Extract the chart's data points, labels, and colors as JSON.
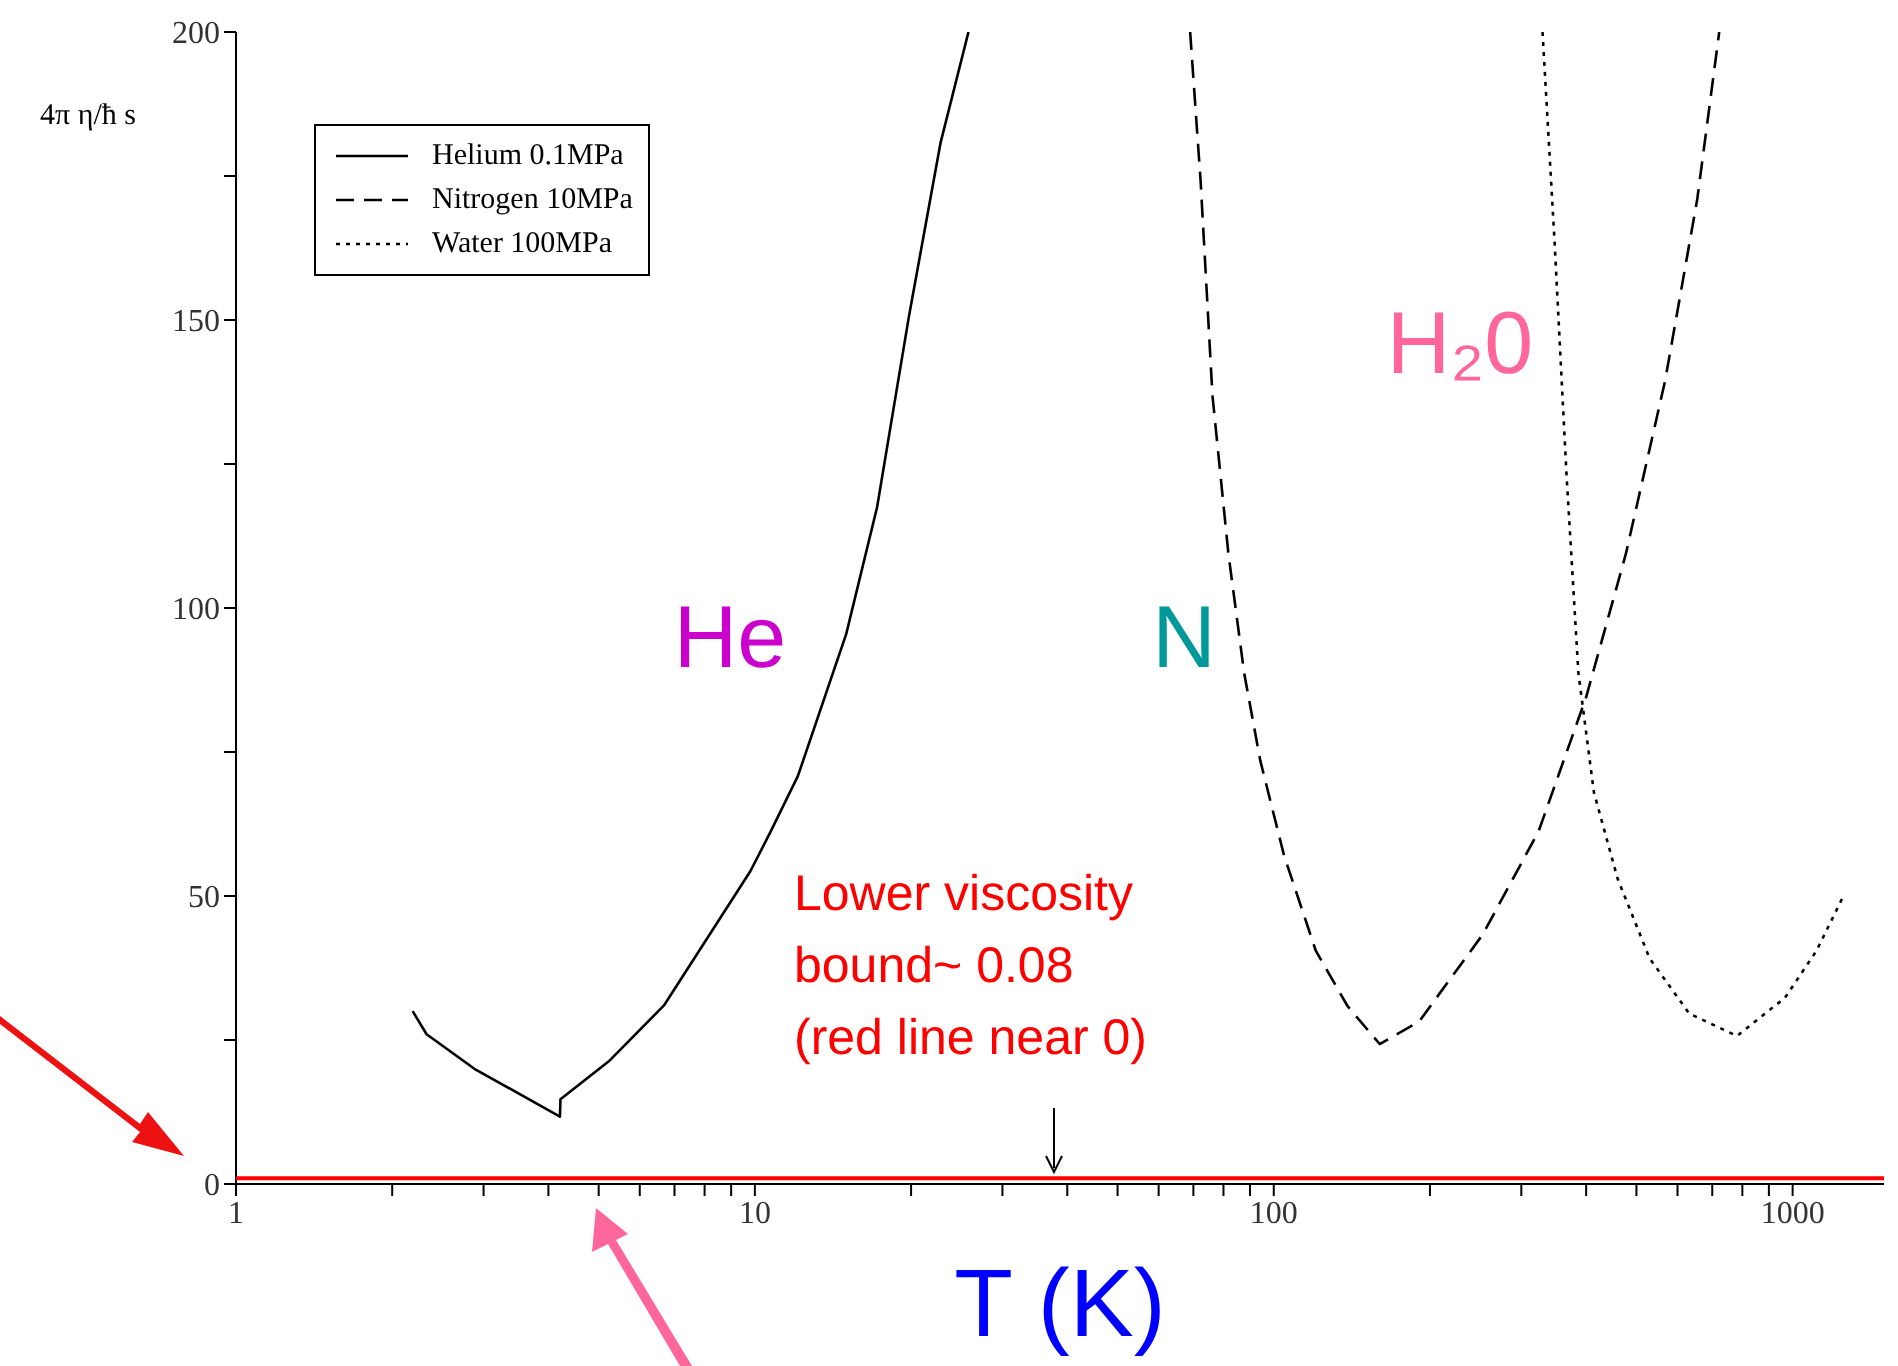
{
  "chart_data": {
    "type": "line",
    "xlabel": "T (K)",
    "ylabel": "4π η/ħ s",
    "log": "x",
    "xlim": [
      1,
      1500
    ],
    "ylim": [
      0,
      200
    ],
    "xticks": [
      1,
      {
        "value": 2,
        "label": null
      },
      {
        "value": 3,
        "label": null
      },
      {
        "value": 4,
        "label": null
      },
      {
        "value": 5,
        "label": null
      },
      {
        "value": 6,
        "label": null
      },
      {
        "value": 7,
        "label": null
      },
      {
        "value": 8,
        "label": null
      },
      {
        "value": 9,
        "label": null
      },
      10,
      {
        "value": 20,
        "label": null
      },
      {
        "value": 30,
        "label": null
      },
      {
        "value": 40,
        "label": null
      },
      {
        "value": 50,
        "label": null
      },
      {
        "value": 60,
        "label": null
      },
      {
        "value": 70,
        "label": null
      },
      {
        "value": 80,
        "label": null
      },
      {
        "value": 90,
        "label": null
      },
      100,
      {
        "value": 200,
        "label": null
      },
      {
        "value": 300,
        "label": null
      },
      {
        "value": 400,
        "label": null
      },
      {
        "value": 500,
        "label": null
      },
      {
        "value": 600,
        "label": null
      },
      {
        "value": 700,
        "label": null
      },
      {
        "value": 800,
        "label": null
      },
      {
        "value": 900,
        "label": null
      },
      1000
    ],
    "yticks": [
      0,
      {
        "value": 25,
        "label": null
      },
      50,
      {
        "value": 75,
        "label": null
      },
      100,
      {
        "value": 125,
        "label": null
      },
      150,
      {
        "value": 175,
        "label": null
      },
      200
    ],
    "grid": false,
    "legend": "top left",
    "marker": "none",
    "series": [
      {
        "name": "Helium 0.1MPa",
        "color": "#000000",
        "line_style": "solid",
        "x": [
          2.19,
          2.33,
          2.88,
          4.21,
          4.22,
          5.23,
          6.68,
          9.8,
          10.7,
          12.1,
          15,
          17.2,
          19.8,
          22.8,
          25.8
        ],
        "values": [
          30,
          26,
          20,
          11.7,
          14.7,
          21.3,
          31,
          54.3,
          61,
          70.8,
          95.5,
          117.5,
          150.5,
          180.8,
          200
        ]
      },
      {
        "name": "Nitrogen 10MPa",
        "color": "#000000",
        "line_style": "dashed",
        "x": [
          69,
          72.3,
          76.2,
          81.8,
          87.7,
          94.2,
          104.7,
          120.5,
          138.7,
          160,
          190.6,
          252.7,
          323.8,
          399.9,
          476.8,
          568,
          655,
          722
        ],
        "values": [
          200,
          174,
          136.8,
          109.3,
          88.7,
          73.5,
          57,
          40.5,
          30.9,
          24.3,
          28.2,
          43.3,
          61.2,
          84.5,
          109.3,
          139.5,
          171,
          200
        ]
      },
      {
        "name": "Water 100MPa",
        "color": "#000000",
        "line_style": "dotted",
        "x": [
          329.6,
          347.5,
          366.7,
          386.5,
          414,
          460,
          530,
          632,
          781,
          966,
          1112,
          1259
        ],
        "values": [
          200,
          164,
          123,
          88.7,
          68,
          53,
          39.2,
          29.6,
          25.7,
          32.3,
          40.5,
          50.4
        ]
      }
    ],
    "ref_lines": [
      {
        "axis": "y",
        "value": 1,
        "color": "#ff0000"
      }
    ],
    "annotations": [
      "He",
      "N",
      "H₂0",
      "Lower viscosity\nbound~ 0.08\n(red line near 0)"
    ]
  }
}
